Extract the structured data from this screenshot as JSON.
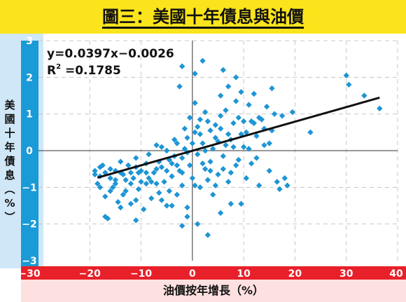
{
  "title": "圖三：美國十年債息與油價",
  "ylabel_chars": [
    "美",
    "國",
    "十",
    "年",
    "債",
    "息",
    "︵",
    "%",
    "︶"
  ],
  "xlabel": "油價按年增長（%）",
  "equation": "y=0.0397x−0.0026",
  "r2_label": "R",
  "r2_sup": "2",
  "r2_value": " =0.1785",
  "colors": {
    "title_bg": "#fbe41c",
    "y_axis": "#1a9ad6",
    "x_axis": "#e8202a",
    "points": "#1e95d4",
    "trend": "#111111"
  },
  "chart_data": {
    "type": "scatter",
    "title": "圖三：美國十年債息與油價",
    "xlabel": "油價按年增長（%）",
    "ylabel": "美國十年債息（%）",
    "xlim": [
      -30,
      40
    ],
    "ylim": [
      -3,
      3
    ],
    "xticks": [
      -30,
      -20,
      -10,
      0,
      10,
      20,
      30,
      40
    ],
    "yticks": [
      -3,
      -2,
      -1,
      0,
      1,
      2,
      3
    ],
    "grid": true,
    "trendline": {
      "slope": 0.0397,
      "intercept": -0.0026,
      "r2": 0.1785,
      "x_range": [
        -18.5,
        36.5
      ]
    },
    "points": [
      [
        -19,
        -0.55
      ],
      [
        -18.5,
        -0.9
      ],
      [
        -18,
        -0.7
      ],
      [
        -17.5,
        -0.4
      ],
      [
        -17,
        -1.25
      ],
      [
        -16.5,
        -1.85
      ],
      [
        -16,
        -0.5
      ],
      [
        -15.5,
        -1.0
      ],
      [
        -15,
        -0.8
      ],
      [
        -14.5,
        -1.4
      ],
      [
        -14,
        -0.3
      ],
      [
        -13.5,
        -0.65
      ],
      [
        -13,
        -1.1
      ],
      [
        -12.5,
        -0.4
      ],
      [
        -12,
        -1.45
      ],
      [
        -11.5,
        -0.75
      ],
      [
        -11,
        -0.2
      ],
      [
        -10.5,
        -1.05
      ],
      [
        -10,
        -0.55
      ],
      [
        -9.5,
        -1.6
      ],
      [
        -9,
        -0.9
      ],
      [
        -8.5,
        -0.1
      ],
      [
        -8,
        -1.3
      ],
      [
        -7.5,
        -0.6
      ],
      [
        -7,
        0.15
      ],
      [
        -6.5,
        -1.15
      ],
      [
        -6,
        -0.45
      ],
      [
        -5.5,
        -0.85
      ],
      [
        -5,
        -1.5
      ],
      [
        -4.5,
        -0.25
      ],
      [
        -4,
        -0.7
      ],
      [
        -3.5,
        0.3
      ],
      [
        -3,
        -1.2
      ],
      [
        -2.5,
        -0.55
      ],
      [
        -2,
        -0.95
      ],
      [
        -1.5,
        0.05
      ],
      [
        -1,
        -1.55
      ],
      [
        -0.5,
        -0.4
      ],
      [
        0,
        -0.75
      ],
      [
        0.5,
        0.5
      ],
      [
        1,
        -0.1
      ],
      [
        1.5,
        -1.0
      ],
      [
        2,
        0.2
      ],
      [
        2.5,
        -0.5
      ],
      [
        3,
        0.8
      ],
      [
        3.5,
        -0.3
      ],
      [
        4,
        -1.2
      ],
      [
        4.5,
        0.35
      ],
      [
        5,
        -0.65
      ],
      [
        5.5,
        0.6
      ],
      [
        6,
        -0.15
      ],
      [
        6.5,
        1.1
      ],
      [
        7,
        -0.85
      ],
      [
        7.5,
        0.3
      ],
      [
        8,
        0.75
      ],
      [
        8.5,
        -0.4
      ],
      [
        9,
        0.9
      ],
      [
        9.5,
        -1.45
      ],
      [
        10,
        0.1
      ],
      [
        10.5,
        0.5
      ],
      [
        11,
        1.25
      ],
      [
        11.5,
        -0.35
      ],
      [
        12,
        0.75
      ],
      [
        12.5,
        0.4
      ],
      [
        13,
        -0.95
      ],
      [
        13.5,
        0.85
      ],
      [
        14,
        0.15
      ],
      [
        14.5,
        1.2
      ],
      [
        15,
        -0.55
      ],
      [
        15.5,
        0.55
      ],
      [
        16,
        1.0
      ],
      [
        17,
        -1.05
      ],
      [
        18,
        -0.75
      ],
      [
        19.5,
        1.05
      ],
      [
        23,
        0.5
      ],
      [
        30,
        2.05
      ],
      [
        30.5,
        1.8
      ],
      [
        33.5,
        1.5
      ],
      [
        36.5,
        1.15
      ],
      [
        -8.5,
        -0.75
      ],
      [
        -7,
        -0.9
      ],
      [
        -6,
        -1.35
      ],
      [
        -4.5,
        -1.1
      ],
      [
        -3,
        -0.4
      ],
      [
        -2,
        -0.2
      ],
      [
        -1,
        0.35
      ],
      [
        0.5,
        -0.95
      ],
      [
        1.5,
        0.85
      ],
      [
        2.5,
        1.05
      ],
      [
        3.5,
        0.55
      ],
      [
        4.5,
        -0.95
      ],
      [
        5.5,
        0.95
      ],
      [
        6.5,
        0.15
      ],
      [
        7.5,
        -0.6
      ],
      [
        8.5,
        1.35
      ],
      [
        9.5,
        0.45
      ],
      [
        10.5,
        -0.75
      ],
      [
        11.5,
        0.8
      ],
      [
        12.5,
        -0.2
      ],
      [
        0.5,
        2.1
      ],
      [
        2,
        2.45
      ],
      [
        -2,
        2.3
      ],
      [
        6,
        2.2
      ],
      [
        7,
        1.75
      ],
      [
        8.5,
        2.0
      ],
      [
        5.5,
        1.5
      ],
      [
        9.5,
        1.6
      ],
      [
        12,
        1.55
      ],
      [
        -2.5,
        1.75
      ],
      [
        15.5,
        1.7
      ],
      [
        1,
        -2.0
      ],
      [
        -2,
        -2.05
      ],
      [
        3,
        -2.3
      ],
      [
        -1,
        -1.8
      ],
      [
        5.5,
        -1.7
      ],
      [
        -4,
        -1.5
      ],
      [
        7.5,
        -1.45
      ],
      [
        -11,
        -1.9
      ],
      [
        -17,
        -1.8
      ],
      [
        -1.5,
        0.6
      ],
      [
        -0.5,
        0.9
      ],
      [
        0.5,
        1.3
      ],
      [
        1.5,
        0.45
      ],
      [
        2.5,
        0.0
      ],
      [
        3.5,
        -0.55
      ],
      [
        4.5,
        0.7
      ],
      [
        -3.5,
        -0.15
      ],
      [
        -5,
        0.0
      ],
      [
        -6.5,
        -0.3
      ],
      [
        -9,
        -0.35
      ],
      [
        -10.5,
        -0.6
      ],
      [
        -12,
        -0.9
      ],
      [
        -13.5,
        -1.2
      ],
      [
        -15,
        -0.55
      ],
      [
        -16,
        -1.1
      ],
      [
        -18,
        -1.0
      ],
      [
        -14,
        -1.55
      ],
      [
        -11,
        -1.35
      ],
      [
        13,
        0.9
      ],
      [
        14,
        0.6
      ],
      [
        15,
        0.2
      ],
      [
        16.5,
        -0.85
      ],
      [
        17.5,
        0.95
      ],
      [
        18.5,
        -0.95
      ],
      [
        11,
        0.05
      ],
      [
        10,
        0.8
      ],
      [
        9,
        -0.25
      ],
      [
        8,
        0.1
      ],
      [
        7,
        0.45
      ],
      [
        6,
        -0.5
      ],
      [
        5,
        0.25
      ],
      [
        4,
        0.05
      ],
      [
        3,
        -0.8
      ],
      [
        2,
        -0.35
      ],
      [
        1,
        0.65
      ],
      [
        0,
        0.2
      ],
      [
        -1,
        -0.05
      ],
      [
        -2,
        -0.6
      ],
      [
        -3,
        0.2
      ],
      [
        -4,
        -0.35
      ],
      [
        -5,
        -0.55
      ],
      [
        -6,
        0.1
      ],
      [
        -7,
        -0.5
      ],
      [
        -8,
        -0.85
      ],
      [
        -9,
        -0.6
      ],
      [
        -10,
        -0.85
      ],
      [
        -11,
        -0.45
      ],
      [
        -12,
        -0.6
      ],
      [
        -13,
        -0.8
      ],
      [
        -14,
        -0.6
      ],
      [
        -15,
        -0.9
      ],
      [
        -16,
        -0.75
      ],
      [
        -17,
        -0.6
      ],
      [
        -18,
        -0.45
      ],
      [
        -19,
        -0.65
      ]
    ]
  }
}
